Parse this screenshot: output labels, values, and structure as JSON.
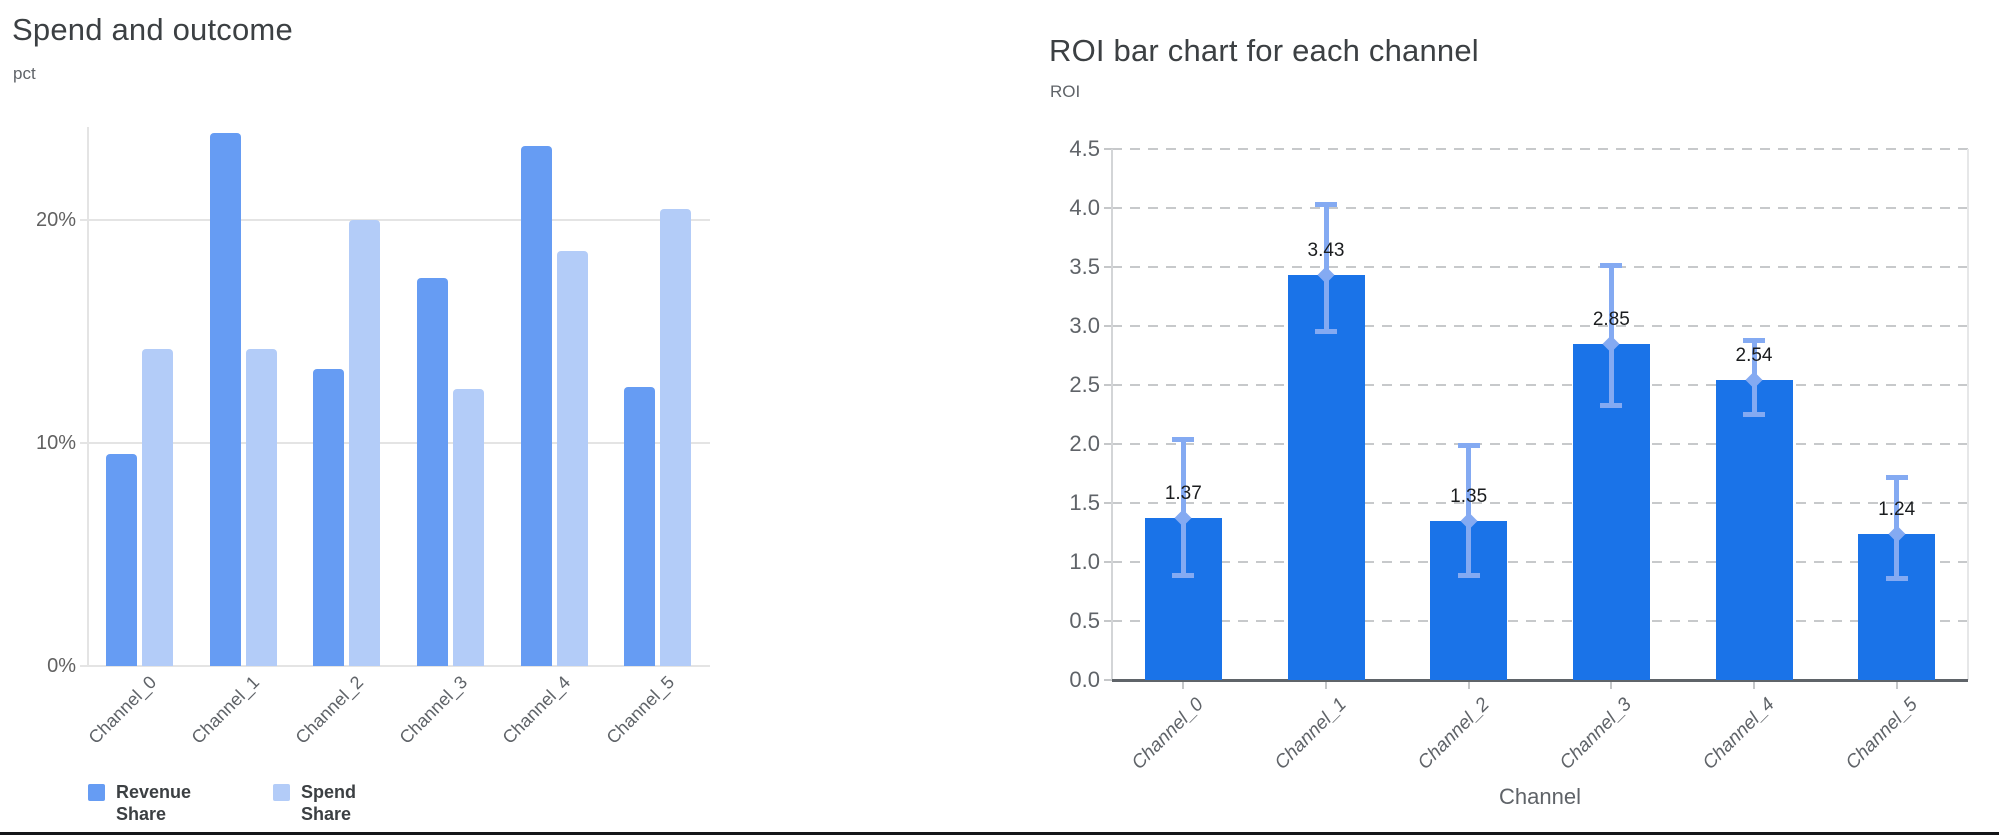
{
  "page": {
    "background": "#ffffff",
    "bottom_rule_color": "#141518"
  },
  "chart_data": [
    {
      "type": "bar",
      "title": "Spend and outcome",
      "ylabel": "pct",
      "xlabel": "",
      "categories": [
        "Channel_0",
        "Channel_1",
        "Channel_2",
        "Channel_3",
        "Channel_4",
        "Channel_5"
      ],
      "series": [
        {
          "name": "Revenue Share",
          "color": "#669cf3",
          "values": [
            9.5,
            23.9,
            13.3,
            17.4,
            23.3,
            12.5
          ]
        },
        {
          "name": "Spend Share",
          "color": "#b3ccf8",
          "values": [
            14.2,
            14.2,
            20.0,
            12.4,
            18.6,
            20.5
          ]
        }
      ],
      "unit": "%",
      "yticks": [
        {
          "label": "0%",
          "value": 0
        },
        {
          "label": "10%",
          "value": 10
        },
        {
          "label": "20%",
          "value": 20
        }
      ],
      "ylim": [
        0,
        24.2
      ],
      "grid": "horizontal-solid",
      "legend_position": "bottom-left"
    },
    {
      "type": "bar",
      "title": "ROI bar chart for each channel",
      "ylabel": "ROI",
      "xlabel": "Channel",
      "categories": [
        "Channel_0",
        "Channel_1",
        "Channel_2",
        "Channel_3",
        "Channel_4",
        "Channel_5"
      ],
      "series": [
        {
          "name": "ROI",
          "color": "#1a73e8",
          "values": [
            1.37,
            3.43,
            1.35,
            2.85,
            2.54,
            1.24
          ]
        }
      ],
      "data_labels": [
        "1.37",
        "3.43",
        "1.35",
        "2.85",
        "2.54",
        "1.24"
      ],
      "error_bars": {
        "color": "#84aaf2",
        "low": [
          0.88,
          2.95,
          0.88,
          2.32,
          2.25,
          0.86
        ],
        "high": [
          2.04,
          4.03,
          1.99,
          3.52,
          2.88,
          1.72
        ]
      },
      "yticks": [
        {
          "label": "0.0",
          "value": 0.0
        },
        {
          "label": "0.5",
          "value": 0.5
        },
        {
          "label": "1.0",
          "value": 1.0
        },
        {
          "label": "1.5",
          "value": 1.5
        },
        {
          "label": "2.0",
          "value": 2.0
        },
        {
          "label": "2.5",
          "value": 2.5
        },
        {
          "label": "3.0",
          "value": 3.0
        },
        {
          "label": "3.5",
          "value": 3.5
        },
        {
          "label": "4.0",
          "value": 4.0
        },
        {
          "label": "4.5",
          "value": 4.5
        }
      ],
      "ylim": [
        0,
        4.5
      ],
      "grid": "horizontal-dashed",
      "legend_position": "none"
    }
  ]
}
